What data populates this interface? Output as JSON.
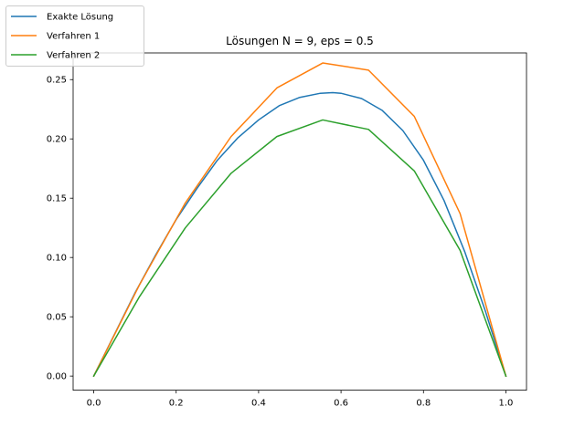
{
  "chart_data": {
    "type": "line",
    "title": "Lösungen N = 9, eps = 0.5",
    "xlabel": "",
    "ylabel": "",
    "xlim": [
      -0.05,
      1.05
    ],
    "ylim": [
      -0.0119,
      0.2725
    ],
    "xticks": [
      0.0,
      0.2,
      0.4,
      0.6,
      0.8,
      1.0
    ],
    "xtick_labels": [
      "0.0",
      "0.2",
      "0.4",
      "0.6",
      "0.8",
      "1.0"
    ],
    "yticks": [
      0.0,
      0.05,
      0.1,
      0.15,
      0.2,
      0.25
    ],
    "ytick_labels": [
      "0.00",
      "0.05",
      "0.10",
      "0.15",
      "0.20",
      "0.25"
    ],
    "grid": false,
    "legend_location": "upper left (outside axes)",
    "series": [
      {
        "name": "Exakte Lösung",
        "color": "#1f77b4",
        "x": [
          0.0,
          0.05,
          0.1,
          0.15,
          0.2,
          0.25,
          0.3,
          0.35,
          0.4,
          0.45,
          0.5,
          0.55,
          0.58,
          0.6,
          0.65,
          0.7,
          0.75,
          0.8,
          0.85,
          0.9,
          0.95,
          1.0
        ],
        "y": [
          0.0,
          0.035,
          0.07,
          0.102,
          0.132,
          0.158,
          0.182,
          0.201,
          0.216,
          0.228,
          0.235,
          0.2385,
          0.239,
          0.2385,
          0.234,
          0.224,
          0.207,
          0.182,
          0.148,
          0.105,
          0.055,
          0.0
        ]
      },
      {
        "name": "Verfahren 1",
        "color": "#ff7f0e",
        "x": [
          0.0,
          0.1111,
          0.2222,
          0.3333,
          0.4444,
          0.5556,
          0.6667,
          0.7778,
          0.8889,
          1.0
        ],
        "y": [
          0.0,
          0.077,
          0.146,
          0.202,
          0.243,
          0.264,
          0.258,
          0.219,
          0.137,
          0.0
        ]
      },
      {
        "name": "Verfahren 2",
        "color": "#2ca02c",
        "x": [
          0.0,
          0.1111,
          0.2222,
          0.3333,
          0.4444,
          0.5556,
          0.6667,
          0.7778,
          0.8889,
          1.0
        ],
        "y": [
          0.0,
          0.067,
          0.125,
          0.171,
          0.202,
          0.216,
          0.208,
          0.173,
          0.106,
          0.0
        ]
      }
    ]
  }
}
